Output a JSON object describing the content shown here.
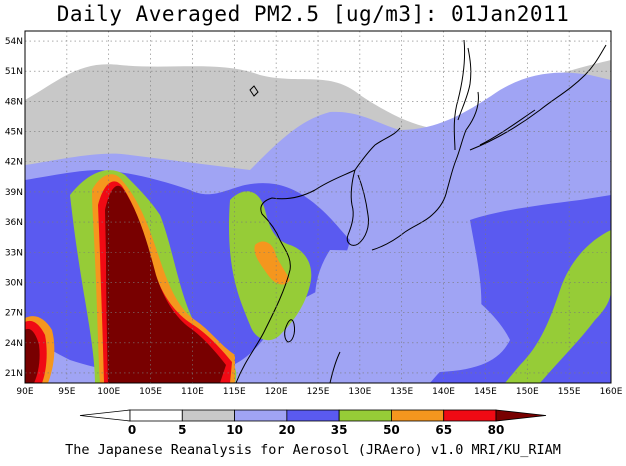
{
  "title": "Daily Averaged PM2.5 [ug/m3]: 01Jan2011",
  "footer": "The Japanese Reanalysis for Aerosol (JRAero) v1.0 MRI/KU_RIAM",
  "lat_labels": [
    "54N",
    "51N",
    "48N",
    "45N",
    "42N",
    "39N",
    "36N",
    "33N",
    "30N",
    "27N",
    "24N",
    "21N"
  ],
  "lon_labels": [
    "90E",
    "95E",
    "100E",
    "105E",
    "110E",
    "115E",
    "120E",
    "125E",
    "130E",
    "135E",
    "140E",
    "145E",
    "150E",
    "155E",
    "160E"
  ],
  "colorbar": {
    "labels": [
      "0",
      "5",
      "10",
      "20",
      "35",
      "50",
      "65",
      "80"
    ],
    "colors": [
      "#ffffff",
      "#ffffff",
      "#c8c8c8",
      "#a0a4f4",
      "#5a5af0",
      "#96cc37",
      "#f5961e",
      "#f00a14",
      "#780000"
    ]
  },
  "map": {
    "lon_range": [
      90,
      160
    ],
    "lat_range": [
      20,
      55
    ],
    "background_color": "#ffffff",
    "gridlines": "dotted"
  }
}
